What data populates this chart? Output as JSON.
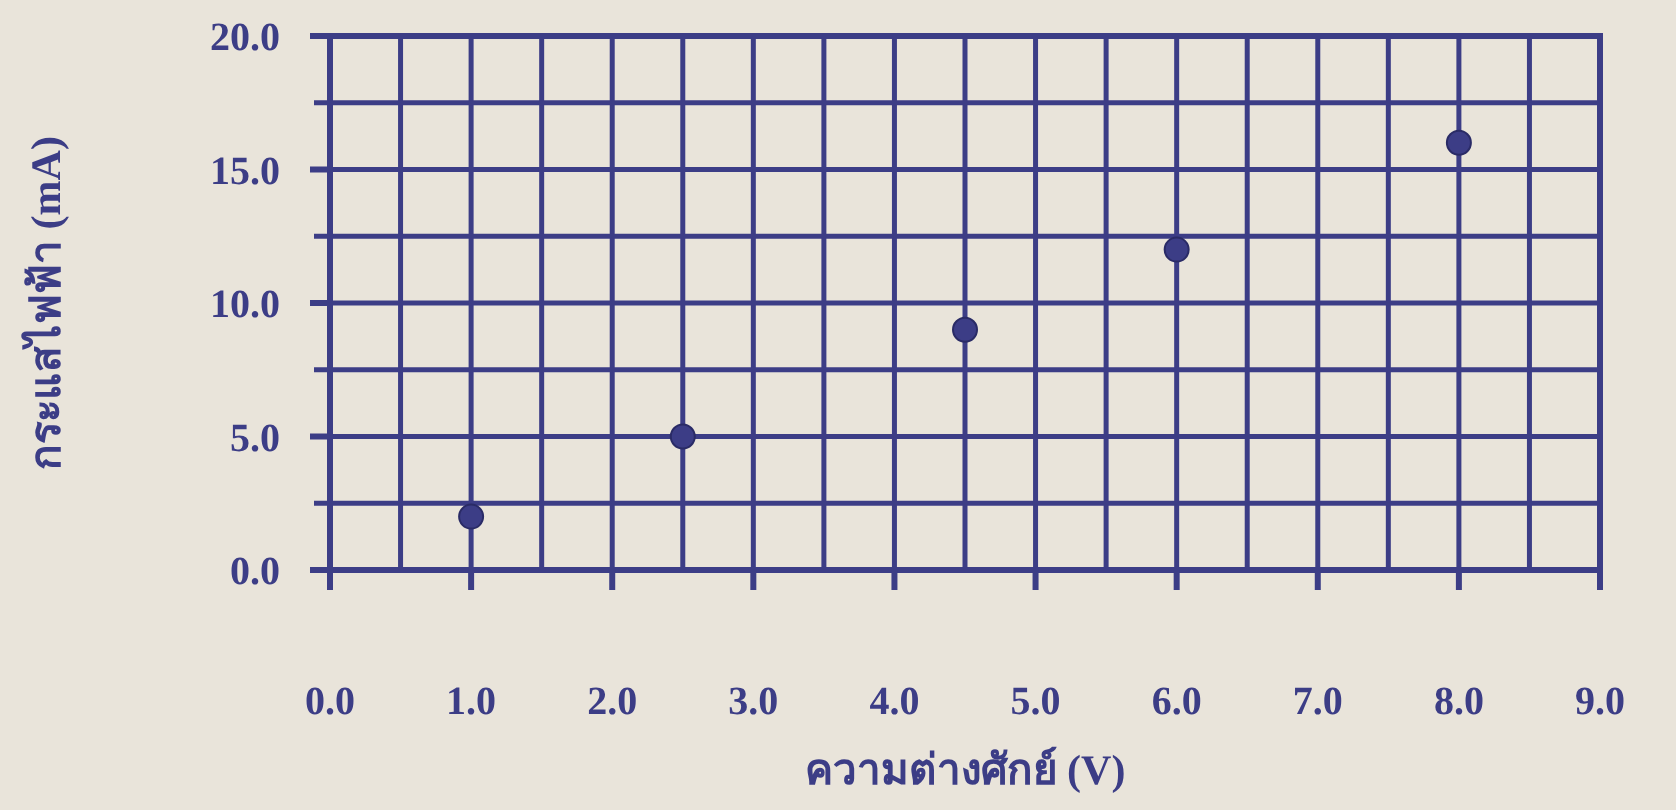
{
  "chart_data": {
    "type": "scatter",
    "xlabel": "ความต่างศักย์ (V)",
    "ylabel": "กระแสไฟฟ้า (mA)",
    "x": [
      1.0,
      2.5,
      4.5,
      6.0,
      8.0
    ],
    "series": [
      {
        "color": "#3c3d86",
        "values": [
          2.0,
          5.0,
          9.0,
          12.0,
          16.0
        ]
      }
    ],
    "xlim": [
      0,
      9
    ],
    "ylim": [
      0,
      20
    ],
    "xticks": [
      {
        "value": 0,
        "label": "0.0"
      },
      {
        "value": 1,
        "label": "1.0"
      },
      {
        "value": 2,
        "label": "2.0"
      },
      {
        "value": 3,
        "label": "3.0"
      },
      {
        "value": 4,
        "label": "4.0"
      },
      {
        "value": 5,
        "label": "5.0"
      },
      {
        "value": 6,
        "label": "6.0"
      },
      {
        "value": 7,
        "label": "7.0"
      },
      {
        "value": 8,
        "label": "8.0"
      },
      {
        "value": 9,
        "label": "9.0"
      }
    ],
    "yticks": [
      {
        "value": 0,
        "label": "0.0"
      },
      {
        "value": 5,
        "label": "5.0"
      },
      {
        "value": 10,
        "label": "10.0"
      },
      {
        "value": 15,
        "label": "15.0"
      },
      {
        "value": 20,
        "label": "20.0"
      }
    ],
    "grid": true,
    "marker": "circle"
  }
}
